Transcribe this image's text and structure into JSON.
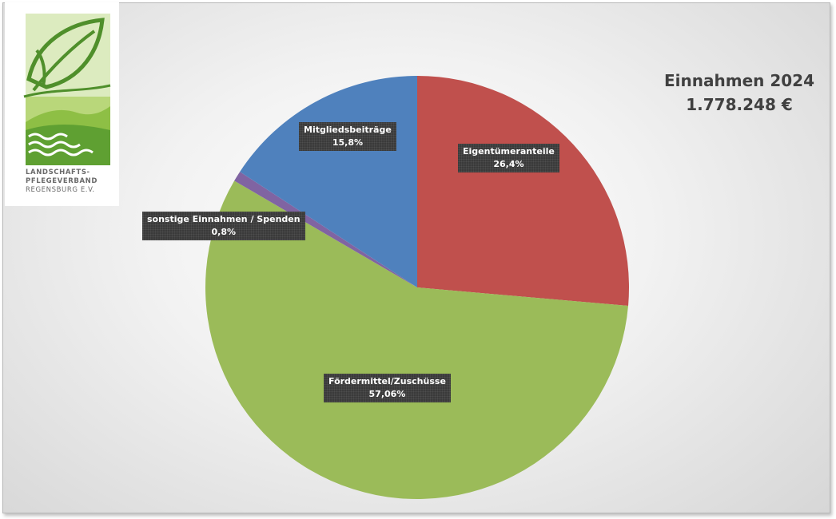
{
  "logo": {
    "line1": "LANDSCHAFTS-",
    "line2": "PFLEGEVERBAND",
    "line3": "REGENSBURG E.V.",
    "colors": {
      "dark_green": "#4f8f2b",
      "light_green": "#8ebf45",
      "pale_green": "#b9d77a"
    }
  },
  "chart": {
    "title": "Einnahmen 2024",
    "subtitle": "1.778.248 €"
  },
  "chart_data": {
    "type": "pie",
    "title": "Einnahmen 2024",
    "subtitle": "1.778.248 €",
    "slices": [
      {
        "name": "Eigentümeranteile",
        "value": 26.4,
        "label": "26,4%",
        "color": "#c0504d"
      },
      {
        "name": "Fördermittel/Zuschüsse",
        "value": 57.06,
        "label": "57,06%",
        "color": "#9bbb59"
      },
      {
        "name": "sonstige Einnahmen / Spenden",
        "value": 0.8,
        "label": "0,8%",
        "color": "#8064a2"
      },
      {
        "name": "Mitgliedsbeiträge",
        "value": 15.8,
        "label": "15,8%",
        "color": "#4f81bd"
      }
    ],
    "start_angle": "12 o'clock",
    "direction": "clockwise",
    "legend": "none",
    "data_labels": "dark callout boxes"
  }
}
